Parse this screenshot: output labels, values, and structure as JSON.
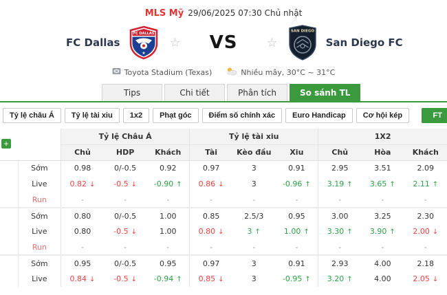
{
  "header": {
    "league": "MLS Mỹ",
    "datetime": "29/06/2025 07:30 Chủ nhật",
    "home_team": "FC Dallas",
    "vs_label": "VS",
    "away_team": "San Diego FC",
    "venue": "Toyota Stadium (Texas)",
    "weather": "Nhiều mây, 30°C ~ 31°C"
  },
  "icons": {
    "favorite": "☆",
    "plus": "+",
    "up": "↑",
    "down": "↓"
  },
  "colors": {
    "accent_green": "#3b9a3e",
    "league_red": "#e23434",
    "odds_down_red": "#f54040",
    "odds_up_green": "#2ba245",
    "run_label_red": "#ee6e73"
  },
  "tabs": [
    {
      "label": "Tips",
      "active": false
    },
    {
      "label": "Chi tiết",
      "active": false
    },
    {
      "label": "Phân tích",
      "active": false
    },
    {
      "label": "So sánh TL",
      "active": true
    }
  ],
  "filters": {
    "asian": "Tỷ lệ châu Á",
    "overunder": "Tỷ lệ tài xiu",
    "onextwo": "1x2",
    "corners": "Phạt góc",
    "correct_score": "Điểm số chính xác",
    "euro_handicap": "Euro Handicap",
    "double_chance": "Cơ hội kép",
    "ft": "FT"
  },
  "table": {
    "groups": [
      "Tỷ lệ Châu Á",
      "Tỷ lệ tài xiu",
      "1X2"
    ],
    "columns": [
      "Chủ",
      "HDP",
      "Khách",
      "Tài",
      "Kèo đầu",
      "Xiu",
      "Chủ",
      "Hòa",
      "Khách"
    ],
    "row_labels": {
      "early": "Sớm",
      "live": "Live",
      "run": "Run"
    },
    "blocks": [
      {
        "rows": [
          {
            "key": "early",
            "cells": [
              {
                "v": "0.98",
                "t": "flat"
              },
              {
                "v": "0/-0.5",
                "t": "flat"
              },
              {
                "v": "0.92",
                "t": "flat"
              },
              {
                "v": "0.97",
                "t": "flat"
              },
              {
                "v": "3",
                "t": "flat"
              },
              {
                "v": "0.91",
                "t": "flat"
              },
              {
                "v": "2.95",
                "t": "flat"
              },
              {
                "v": "3.51",
                "t": "flat"
              },
              {
                "v": "2.09",
                "t": "flat"
              }
            ]
          },
          {
            "key": "live",
            "cells": [
              {
                "v": "0.82",
                "t": "down"
              },
              {
                "v": "-0.5",
                "t": "down"
              },
              {
                "v": "-0.90",
                "t": "up"
              },
              {
                "v": "0.86",
                "t": "down"
              },
              {
                "v": "3",
                "t": "flat"
              },
              {
                "v": "-0.96",
                "t": "up"
              },
              {
                "v": "3.19",
                "t": "up"
              },
              {
                "v": "3.65",
                "t": "up"
              },
              {
                "v": "2.11",
                "t": "up"
              }
            ]
          },
          {
            "key": "run",
            "cells": [
              {
                "v": "-",
                "t": "dash"
              },
              {
                "v": "-",
                "t": "dash"
              },
              {
                "v": "-",
                "t": "dash"
              },
              {
                "v": "-",
                "t": "dash"
              },
              {
                "v": "-",
                "t": "dash"
              },
              {
                "v": "-",
                "t": "dash"
              },
              {
                "v": "-",
                "t": "dash"
              },
              {
                "v": "-",
                "t": "dash"
              },
              {
                "v": "-",
                "t": "dash"
              }
            ]
          }
        ]
      },
      {
        "rows": [
          {
            "key": "early",
            "cells": [
              {
                "v": "0.80",
                "t": "flat"
              },
              {
                "v": "0/-0.5",
                "t": "flat"
              },
              {
                "v": "1.00",
                "t": "flat"
              },
              {
                "v": "0.85",
                "t": "flat"
              },
              {
                "v": "2.5/3",
                "t": "flat"
              },
              {
                "v": "0.95",
                "t": "flat"
              },
              {
                "v": "3.00",
                "t": "flat"
              },
              {
                "v": "3.25",
                "t": "flat"
              },
              {
                "v": "2.30",
                "t": "flat"
              }
            ]
          },
          {
            "key": "live",
            "cells": [
              {
                "v": "0.80",
                "t": "flat"
              },
              {
                "v": "-0.5",
                "t": "down"
              },
              {
                "v": "1.00",
                "t": "flat"
              },
              {
                "v": "0.80",
                "t": "down"
              },
              {
                "v": "3",
                "t": "up"
              },
              {
                "v": "1.00",
                "t": "up"
              },
              {
                "v": "3.30",
                "t": "up"
              },
              {
                "v": "3.90",
                "t": "up"
              },
              {
                "v": "2.00",
                "t": "down"
              }
            ]
          },
          {
            "key": "run",
            "cells": [
              {
                "v": "-",
                "t": "dash"
              },
              {
                "v": "-",
                "t": "dash"
              },
              {
                "v": "-",
                "t": "dash"
              },
              {
                "v": "-",
                "t": "dash"
              },
              {
                "v": "-",
                "t": "dash"
              },
              {
                "v": "-",
                "t": "dash"
              },
              {
                "v": "-",
                "t": "dash"
              },
              {
                "v": "-",
                "t": "dash"
              },
              {
                "v": "-",
                "t": "dash"
              }
            ]
          }
        ]
      },
      {
        "rows": [
          {
            "key": "early",
            "cells": [
              {
                "v": "0.95",
                "t": "flat"
              },
              {
                "v": "0/-0.5",
                "t": "flat"
              },
              {
                "v": "0.95",
                "t": "flat"
              },
              {
                "v": "0.97",
                "t": "flat"
              },
              {
                "v": "3",
                "t": "flat"
              },
              {
                "v": "0.91",
                "t": "flat"
              },
              {
                "v": "2.93",
                "t": "flat"
              },
              {
                "v": "4.00",
                "t": "flat"
              },
              {
                "v": "2.18",
                "t": "flat"
              }
            ]
          },
          {
            "key": "live",
            "cells": [
              {
                "v": "0.84",
                "t": "down"
              },
              {
                "v": "-0.5",
                "t": "down"
              },
              {
                "v": "-0.94",
                "t": "up"
              },
              {
                "v": "0.85",
                "t": "down"
              },
              {
                "v": "3",
                "t": "flat"
              },
              {
                "v": "-0.95",
                "t": "up"
              },
              {
                "v": "3.20",
                "t": "up"
              },
              {
                "v": "4.00",
                "t": "flat"
              },
              {
                "v": "2.05",
                "t": "down"
              }
            ]
          }
        ]
      }
    ]
  }
}
